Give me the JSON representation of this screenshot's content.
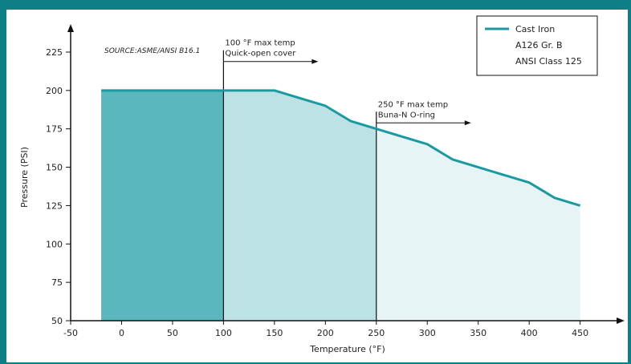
{
  "chart_data": {
    "type": "area",
    "source_note": "SOURCE:ASME/ANSI B16.1",
    "xlabel": "Temperature (°F)",
    "ylabel": "Pressure (PSI)",
    "xlim": [
      -50,
      470
    ],
    "ylim": [
      50,
      237
    ],
    "x_ticks": [
      -50,
      0,
      50,
      100,
      150,
      200,
      250,
      300,
      350,
      400,
      450
    ],
    "y_ticks": [
      50,
      75,
      100,
      125,
      150,
      175,
      200,
      225
    ],
    "grid": false,
    "legend": {
      "position": "top-right",
      "lines": [
        "Cast Iron",
        "A126 Gr. B",
        "ANSI Class 125"
      ]
    },
    "series": [
      {
        "name": "Cast Iron",
        "x": [
          -20,
          150,
          175,
          200,
          225,
          250,
          275,
          300,
          325,
          350,
          375,
          400,
          425,
          450
        ],
        "y": [
          200,
          200,
          195,
          190,
          180,
          175,
          170,
          165,
          155,
          150,
          145,
          140,
          130,
          125
        ]
      }
    ],
    "region_colors": [
      "#5ab7bd",
      "#bde2e5",
      "#e6f4f6"
    ],
    "region_breaks": [
      100,
      250
    ],
    "line_color": "#1a9aa0",
    "annotations": [
      {
        "x": 100,
        "y": 222,
        "text_lines": [
          "100 °F max temp",
          "Quick-open cover"
        ]
      },
      {
        "x": 250,
        "y": 182,
        "text_lines": [
          "250 °F max temp",
          "Buna-N O-ring"
        ]
      }
    ]
  }
}
